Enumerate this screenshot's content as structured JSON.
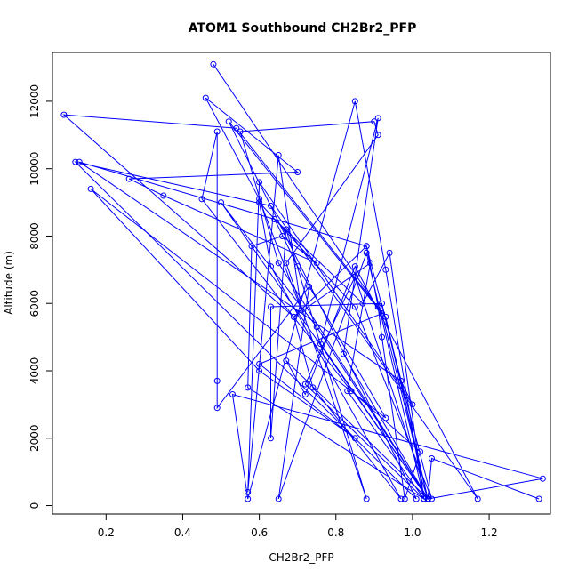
{
  "chart_data": {
    "type": "scatter",
    "title": "ATOM1 Southbound CH2Br2_PFP",
    "xlabel": "CH2Br2_PFP",
    "ylabel": "Altitude (m)",
    "xlim": [
      0.06,
      1.36
    ],
    "ylim": [
      -250,
      13450
    ],
    "xticks": [
      0.2,
      0.4,
      0.6,
      0.8,
      1.0,
      1.2
    ],
    "xtick_labels": [
      "0.2",
      "0.4",
      "0.6",
      "0.8",
      "1.0",
      "1.2"
    ],
    "yticks": [
      0,
      2000,
      4000,
      6000,
      8000,
      10000,
      12000
    ],
    "ytick_labels": [
      "0",
      "2000",
      "4000",
      "6000",
      "8000",
      "10000",
      "12000"
    ],
    "grid": false,
    "line_color": "#0000ff",
    "point_color": "#0000ff",
    "series": [
      {
        "x": [
          0.48,
          0.92,
          1.04,
          0.65,
          0.55,
          0.9,
          0.91,
          0.67,
          0.88,
          0.67,
          0.63,
          0.63,
          0.92,
          1.04,
          1.34,
          0.53,
          0.57,
          0.85,
          0.93,
          1.03,
          0.57,
          0.58,
          0.66,
          0.75,
          0.35,
          0.26,
          0.7,
          0.46,
          0.6,
          0.71,
          0.65,
          0.57,
          0.6,
          1.0,
          0.97,
          0.13,
          0.88,
          0.91,
          0.92,
          0.98,
          1.02,
          0.84,
          0.45,
          0.49,
          0.49,
          0.49,
          0.73,
          0.65,
          0.88,
          1.03,
          0.72,
          0.85,
          1.04,
          0.75,
          0.5,
          1.04,
          0.93,
          0.54,
          0.09,
          0.69,
          0.88,
          1.05,
          0.85,
          0.6,
          0.63,
          0.97,
          0.74,
          0.69,
          0.89,
          0.83,
          1.03,
          0.94,
          0.87,
          0.64,
          0.7,
          0.93,
          0.16,
          0.6,
          0.85,
          0.6,
          0.92,
          0.52,
          1.01,
          0.12,
          0.63,
          1.17,
          0.85,
          0.72,
          0.67,
          1.04,
          0.82,
          0.91,
          0.76,
          1.04,
          1.05,
          1.33
        ],
        "y": [
          13100,
          5700,
          200,
          7200,
          11100,
          11400,
          11000,
          7200,
          200,
          8200,
          2000,
          5900,
          6000,
          200,
          800,
          3300,
          200,
          12000,
          7000,
          200,
          3500,
          7700,
          8000,
          7200,
          9200,
          9700,
          9900,
          12100,
          9100,
          5800,
          10400,
          400,
          9600,
          3000,
          3700,
          10200,
          7700,
          5900,
          5000,
          200,
          1600,
          3400,
          9100,
          11100,
          3700,
          2900,
          6500,
          200,
          7500,
          200,
          3600,
          6800,
          200,
          5300,
          9000,
          200,
          5600,
          11200,
          11600,
          5600,
          7700,
          200,
          5900,
          9000,
          7100,
          200,
          3500,
          5600,
          7200,
          3400,
          200,
          7500,
          6000,
          8500,
          7100,
          2600,
          9400,
          4000,
          2000,
          4200,
          5700,
          11400,
          200,
          10200,
          8900,
          200,
          7100,
          3300,
          4300,
          200,
          4500,
          11500,
          4800,
          200,
          1400,
          200
        ]
      }
    ]
  }
}
